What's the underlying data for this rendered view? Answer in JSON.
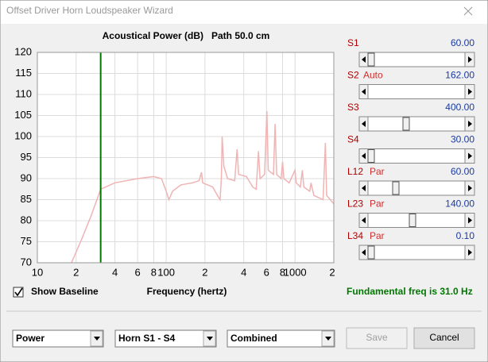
{
  "window": {
    "title": "Offset Driver Horn Loudspeaker Wizard"
  },
  "chart_data": {
    "type": "line",
    "title": "Acoustical Power (dB)   Path 50.0 cm",
    "x_label": "Frequency (hertz)",
    "log_x": true,
    "grid": true,
    "xlim": [
      10,
      2000
    ],
    "ylim": [
      70,
      120
    ],
    "xticks": [
      10,
      {
        "value": 20,
        "label": "2"
      },
      {
        "value": 40,
        "label": "4"
      },
      {
        "value": 60,
        "label": "6"
      },
      {
        "value": 80,
        "label": "8"
      },
      100,
      {
        "value": 200,
        "label": "2"
      },
      {
        "value": 400,
        "label": "4"
      },
      {
        "value": 600,
        "label": "6"
      },
      {
        "value": 800,
        "label": "8"
      },
      1000,
      {
        "value": 2000,
        "label": "2"
      }
    ],
    "yticks": [
      70,
      75,
      80,
      85,
      90,
      95,
      100,
      105,
      110,
      115,
      120
    ],
    "color": "#f0b4b4",
    "x": [
      18.4,
      22,
      26,
      31,
      40,
      60,
      80,
      92,
      100,
      105,
      112,
      130,
      160,
      180,
      188,
      192,
      230,
      250,
      262,
      268,
      272,
      280,
      300,
      340,
      355,
      365,
      420,
      470,
      500,
      520,
      535,
      580,
      605,
      620,
      680,
      700,
      720,
      780,
      800,
      820,
      900,
      1000,
      1020,
      1100,
      1140,
      1170,
      1300,
      1330,
      1400,
      1650,
      1720,
      1760,
      2000
    ],
    "values": [
      70,
      75.5,
      81,
      87.5,
      89,
      90,
      90.5,
      90,
      87,
      85,
      87,
      88.5,
      89,
      89.5,
      91.5,
      89,
      88,
      86,
      85,
      90,
      100,
      93,
      90,
      89.5,
      97,
      91,
      90.5,
      88,
      87.5,
      96.5,
      90,
      91,
      106,
      92,
      91,
      103,
      91,
      90,
      94,
      90,
      89,
      92,
      89,
      88,
      92,
      88,
      87,
      89,
      86,
      85,
      98.5,
      86,
      84
    ],
    "marker_x": 31,
    "marker_color": "#007800"
  },
  "sliders": [
    {
      "label": "S1",
      "value": "60.00"
    },
    {
      "label": "S2",
      "mode": "Auto",
      "value": "162.00"
    },
    {
      "label": "S3",
      "value": "400.00"
    },
    {
      "label": "S4",
      "value": "30.00"
    },
    {
      "label": "L12",
      "mode": "Par",
      "value": "60.00"
    },
    {
      "label": "L23",
      "mode": "Par",
      "value": "140.00"
    },
    {
      "label": "L34",
      "mode": "Par",
      "value": "0.10"
    }
  ],
  "checkbox": {
    "label": "Show Baseline",
    "checked": true
  },
  "status": "Fundamental freq is 31.0 Hz",
  "dropdowns": [
    "Power",
    "Horn S1 - S4",
    "Combined"
  ],
  "buttons": [
    "Save",
    "Cancel"
  ]
}
